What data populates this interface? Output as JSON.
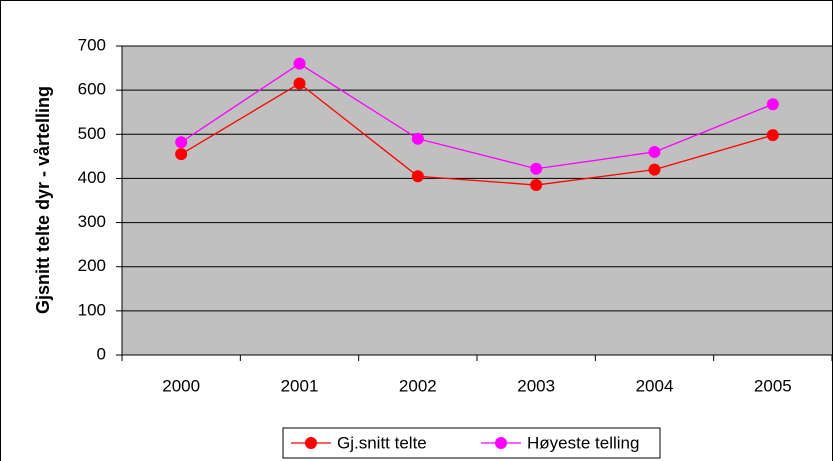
{
  "chart_data": {
    "type": "line",
    "ylabel": "Gjsnitt telte dyr - vårtelling",
    "categories": [
      "2000",
      "2001",
      "2002",
      "2003",
      "2004",
      "2005"
    ],
    "series": [
      {
        "name": "Gj.snitt telte",
        "color": "#ff0000",
        "values": [
          455,
          615,
          405,
          385,
          420,
          498
        ]
      },
      {
        "name": "Høyeste telling",
        "color": "#ff00ff",
        "values": [
          482,
          660,
          490,
          422,
          460,
          568
        ]
      }
    ],
    "ylim": [
      0,
      700
    ],
    "yticks": [
      0,
      100,
      200,
      300,
      400,
      500,
      600,
      700
    ],
    "grid": true,
    "legend": "bottom"
  }
}
